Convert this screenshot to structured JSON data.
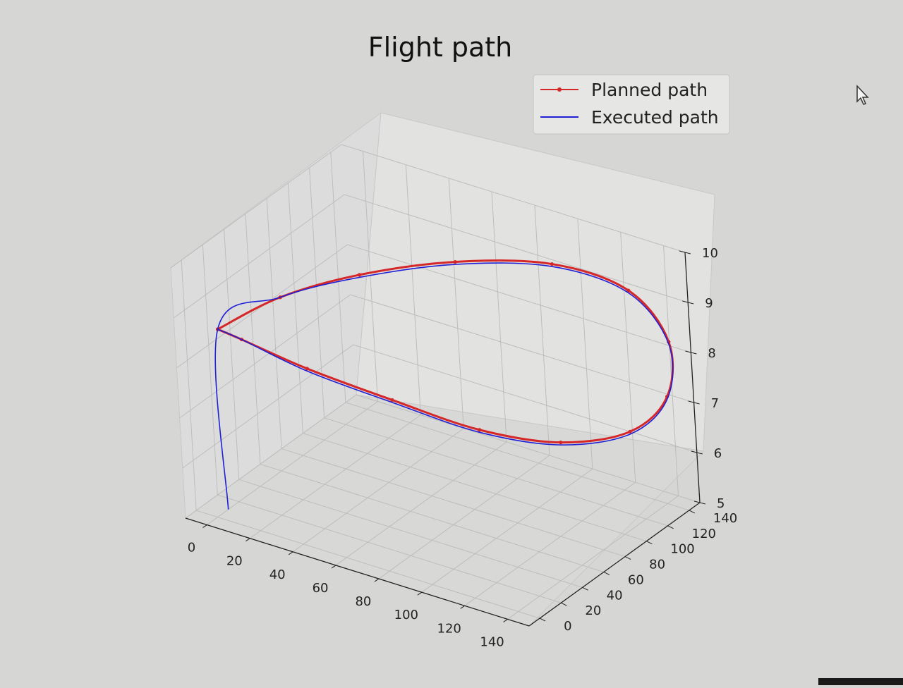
{
  "chart_data": {
    "type": "line",
    "projection": "3d",
    "title": "Flight path",
    "xlabel": "",
    "ylabel": "",
    "zlabel": "",
    "x_ticks": [
      0,
      20,
      40,
      60,
      80,
      100,
      120,
      140
    ],
    "y_ticks": [
      0,
      20,
      40,
      60,
      80,
      100,
      120,
      140
    ],
    "z_ticks": [
      5,
      6,
      7,
      8,
      9,
      10
    ],
    "xlim": [
      -10,
      150
    ],
    "ylim": [
      -10,
      150
    ],
    "zlim": [
      5,
      10
    ],
    "grid": true,
    "legend_position": "top-right",
    "series": [
      {
        "name": "Planned path",
        "color": "#d62728",
        "marker": "dot",
        "points": [
          [
            0,
            10,
            8.6
          ],
          [
            20,
            30,
            9.2
          ],
          [
            45,
            55,
            9.6
          ],
          [
            75,
            85,
            9.8
          ],
          [
            105,
            115,
            9.7
          ],
          [
            130,
            135,
            9.2
          ],
          [
            145,
            140,
            8.3
          ],
          [
            148,
            130,
            7.4
          ],
          [
            140,
            110,
            6.9
          ],
          [
            120,
            85,
            6.8
          ],
          [
            95,
            60,
            7.1
          ],
          [
            65,
            40,
            7.6
          ],
          [
            35,
            22,
            8.1
          ],
          [
            10,
            12,
            8.5
          ],
          [
            0,
            10,
            8.6
          ]
        ]
      },
      {
        "name": "Executed path",
        "color": "#1f1fd6",
        "marker": "none",
        "points": [
          [
            0,
            10,
            5.0
          ],
          [
            0,
            10,
            8.6
          ],
          [
            20,
            30,
            9.2
          ],
          [
            45,
            55,
            9.55
          ],
          [
            75,
            85,
            9.75
          ],
          [
            105,
            115,
            9.65
          ],
          [
            130,
            135,
            9.15
          ],
          [
            145,
            140,
            8.25
          ],
          [
            148,
            130,
            7.35
          ],
          [
            140,
            110,
            6.85
          ],
          [
            120,
            85,
            6.75
          ],
          [
            95,
            60,
            7.05
          ],
          [
            65,
            40,
            7.55
          ],
          [
            35,
            22,
            8.05
          ],
          [
            10,
            12,
            8.5
          ],
          [
            0,
            10,
            8.6
          ]
        ]
      }
    ]
  },
  "decor": {
    "cursor_icon": "mouse-pointer-icon"
  }
}
